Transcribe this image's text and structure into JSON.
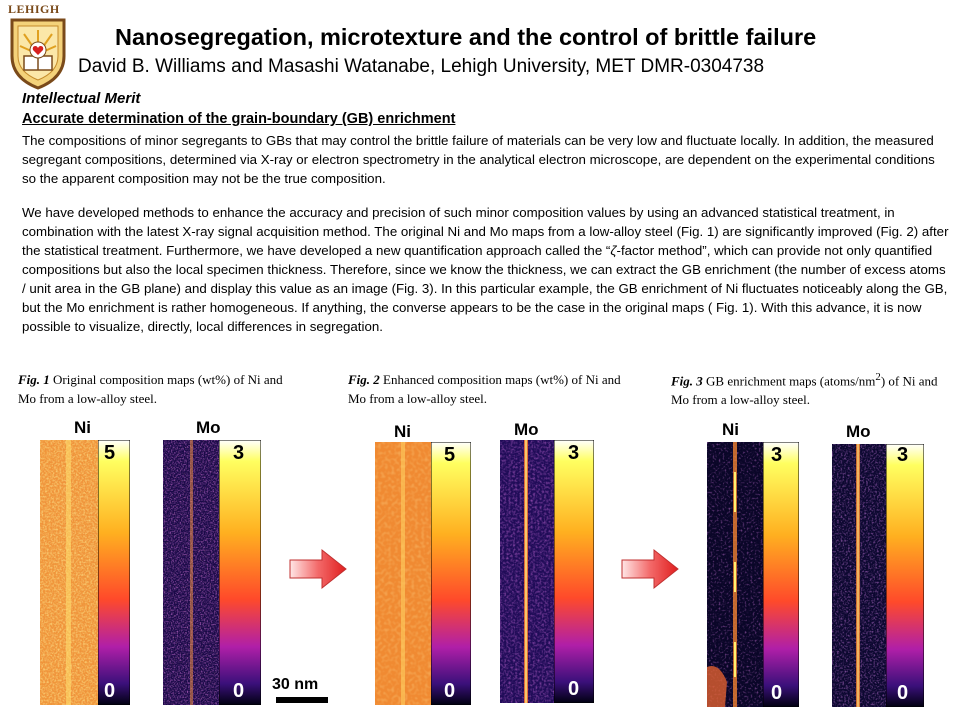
{
  "header": {
    "logo_text": "LEHIGH",
    "title": "Nanosegregation, microtexture and the control of brittle failure",
    "authors": "David B. Williams and Masashi Watanabe, Lehigh University, MET DMR-0304738"
  },
  "body": {
    "section": "Intellectual Merit",
    "subheading": "Accurate determination of the grain-boundary (GB) enrichment",
    "p1": "The compositions of minor segregants to GBs that may control the brittle failure of materials can be very low and fluctuate locally. In addition, the measured segregant compositions, determined via X-ray or electron spectrometry in the analytical electron microscope, are dependent on the experimental conditions so the apparent composition may not be the true composition.",
    "p2_before": "We have developed methods to enhance the accuracy and precision of such minor composition values by using an advanced statistical treatment, in combination with the latest X-ray signal acquisition method. The original Ni and Mo maps from a low-alloy steel (Fig. 1) are significantly improved (Fig. 2) after the statistical treatment. Furthermore, we have developed a new quantification approach called the “",
    "zeta": "ζ",
    "p2_after": "-factor method”, which can provide not only quantified compositions but also the local specimen thickness. Therefore, since we know the thickness, we can extract the GB enrichment (the number of excess atoms / unit area in the GB plane) and display this value as an image (Fig. 3). In this particular example, the GB enrichment of Ni fluctuates noticeably along the GB, but the Mo enrichment is rather homogeneous. If anything, the converse appears to be the case in the original maps ( Fig. 1). With this advance, it is now possible to visualize, directly, local differences in segregation."
  },
  "figures": [
    {
      "fig_label": "Fig. 1",
      "caption": " Original composition maps (wt%) of Ni and Mo from a low-alloy steel.",
      "ni_label": "Ni",
      "ni_max": "5",
      "ni_min": "0",
      "mo_label": "Mo",
      "mo_max": "3",
      "mo_min": "0"
    },
    {
      "fig_label": "Fig. 2",
      "caption": " Enhanced composition maps (wt%) of Ni and Mo from a low-alloy steel.",
      "ni_label": "Ni",
      "ni_max": "5",
      "ni_min": "0",
      "mo_label": "Mo",
      "mo_max": "3",
      "mo_min": "0"
    },
    {
      "fig_label": "Fig. 3",
      "caption_before": " GB enrichment maps (atoms/nm",
      "caption_sup": "2",
      "caption_after": ") of Ni and Mo from a low-alloy steel.",
      "ni_label": "Ni",
      "ni_max": "3",
      "ni_min": "0",
      "mo_label": "Mo",
      "mo_max": "3",
      "mo_min": "0"
    }
  ],
  "scale_bar": "30 nm",
  "colors": {
    "accent_arrow": "#e8393a",
    "logo_brown": "#7a4a1a"
  }
}
